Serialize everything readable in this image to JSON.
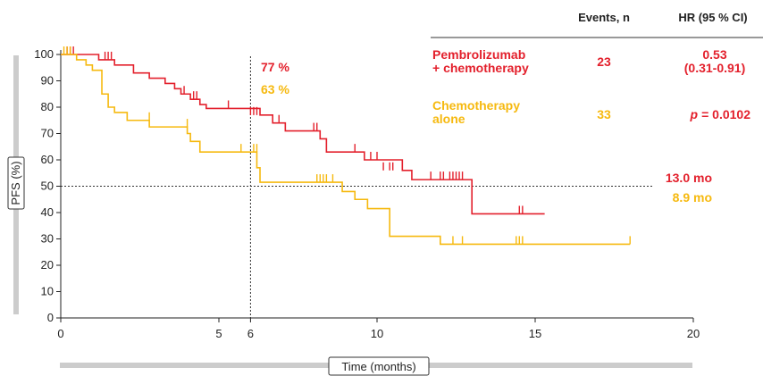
{
  "chart_data": {
    "type": "line",
    "subtype": "kaplan-meier",
    "title": "",
    "xlabel": "Time (months)",
    "ylabel": "PFS (%)",
    "xlim": [
      0,
      20
    ],
    "ylim": [
      0,
      100
    ],
    "x_ticks": [
      0,
      5,
      6,
      10,
      15,
      20
    ],
    "y_ticks": [
      0,
      10,
      20,
      30,
      40,
      50,
      60,
      70,
      80,
      90,
      100
    ],
    "grid": false,
    "reference_lines": [
      {
        "axis": "x",
        "value": 6
      },
      {
        "axis": "y",
        "value": 50
      }
    ],
    "table_header": {
      "events": "Events, n",
      "hr": "HR (95 % CI)"
    },
    "series": [
      {
        "name": "Pembrolizumab + chemotherapy",
        "label_lines": [
          "Pembrolizumab",
          "+ chemotherapy"
        ],
        "color": "#e3202c",
        "events": "23",
        "hr": "0.53",
        "ci": "(0.31-0.91)",
        "landmark": "77 %",
        "median": "13.0 mo",
        "steps": [
          [
            0,
            100
          ],
          [
            1.2,
            98
          ],
          [
            1.7,
            96
          ],
          [
            2.3,
            93
          ],
          [
            2.8,
            91
          ],
          [
            3.3,
            89
          ],
          [
            3.6,
            87
          ],
          [
            3.8,
            85
          ],
          [
            4.1,
            83
          ],
          [
            4.4,
            81
          ],
          [
            4.6,
            79.5
          ],
          [
            6.3,
            77
          ],
          [
            6.7,
            74
          ],
          [
            7.1,
            71
          ],
          [
            8.2,
            68
          ],
          [
            8.4,
            63
          ],
          [
            9.6,
            60
          ],
          [
            10.8,
            56
          ],
          [
            11.1,
            52.5
          ],
          [
            13.0,
            39.5
          ],
          [
            15.3,
            39.5
          ]
        ],
        "censors": [
          [
            0.2,
            100
          ],
          [
            0.3,
            100
          ],
          [
            0.4,
            100
          ],
          [
            1.4,
            98
          ],
          [
            1.5,
            98
          ],
          [
            1.6,
            98
          ],
          [
            3.9,
            85
          ],
          [
            4.2,
            83
          ],
          [
            4.3,
            83
          ],
          [
            5.3,
            79.5
          ],
          [
            6.0,
            77
          ],
          [
            6.1,
            77
          ],
          [
            6.2,
            77
          ],
          [
            6.9,
            74
          ],
          [
            8.0,
            71
          ],
          [
            8.1,
            71
          ],
          [
            9.3,
            63
          ],
          [
            9.8,
            60
          ],
          [
            10.0,
            60
          ],
          [
            10.2,
            56
          ],
          [
            10.4,
            56
          ],
          [
            10.5,
            56
          ],
          [
            11.7,
            52.5
          ],
          [
            12.0,
            52.5
          ],
          [
            12.1,
            52.5
          ],
          [
            12.3,
            52.5
          ],
          [
            12.4,
            52.5
          ],
          [
            12.5,
            52.5
          ],
          [
            12.6,
            52.5
          ],
          [
            12.7,
            52.5
          ],
          [
            14.5,
            39.5
          ],
          [
            14.6,
            39.5
          ]
        ]
      },
      {
        "name": "Chemotherapy alone",
        "label_lines": [
          "Chemotherapy",
          "alone"
        ],
        "color": "#f6b90f",
        "events": "33",
        "p_label": "p",
        "p_value": "= 0.0102",
        "landmark": "63 %",
        "median": "8.9 mo",
        "steps": [
          [
            0,
            100
          ],
          [
            0.5,
            98
          ],
          [
            0.8,
            96
          ],
          [
            1.0,
            94
          ],
          [
            1.3,
            85
          ],
          [
            1.5,
            80
          ],
          [
            1.7,
            78
          ],
          [
            2.1,
            75
          ],
          [
            2.8,
            72.5
          ],
          [
            4.0,
            70
          ],
          [
            4.1,
            67
          ],
          [
            4.4,
            63
          ],
          [
            6.2,
            57
          ],
          [
            6.3,
            51.5
          ],
          [
            8.9,
            48
          ],
          [
            9.3,
            45
          ],
          [
            9.7,
            41.5
          ],
          [
            10.4,
            31
          ],
          [
            12.0,
            28
          ],
          [
            18.0,
            28
          ]
        ],
        "censors": [
          [
            0.1,
            100
          ],
          [
            0.2,
            100
          ],
          [
            0.3,
            100
          ],
          [
            2.8,
            75
          ],
          [
            4.0,
            72.5
          ],
          [
            5.7,
            63
          ],
          [
            6.1,
            63
          ],
          [
            6.2,
            63
          ],
          [
            8.1,
            51.5
          ],
          [
            8.2,
            51.5
          ],
          [
            8.3,
            51.5
          ],
          [
            8.4,
            51.5
          ],
          [
            8.6,
            51.5
          ],
          [
            12.0,
            28
          ],
          [
            12.4,
            28
          ],
          [
            12.7,
            28
          ],
          [
            14.4,
            28
          ],
          [
            14.5,
            28
          ],
          [
            14.6,
            28
          ],
          [
            18.0,
            28
          ]
        ]
      }
    ]
  }
}
